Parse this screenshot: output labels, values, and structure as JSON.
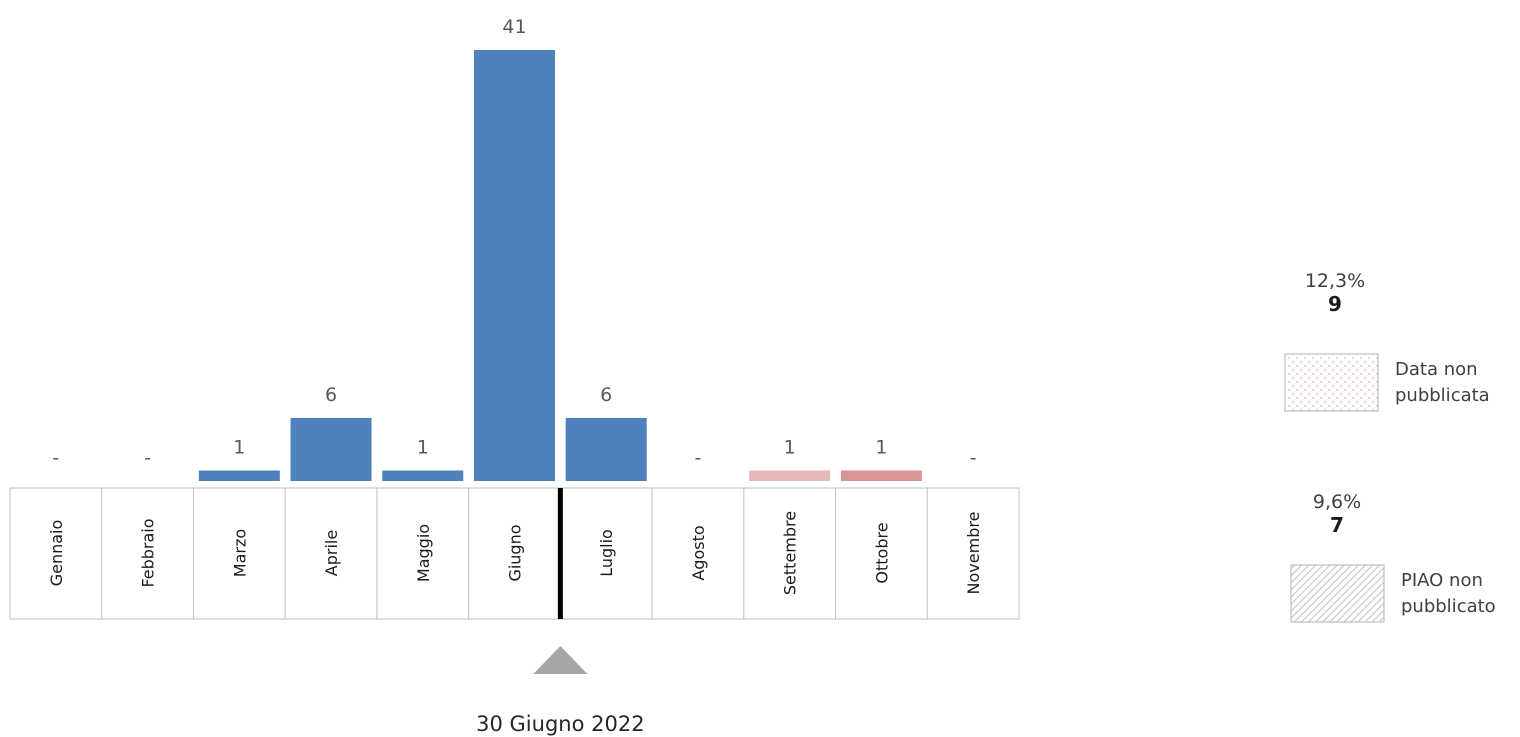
{
  "chart_data": {
    "type": "bar",
    "categories": [
      "Gennaio",
      "Febbraio",
      "Marzo",
      "Aprile",
      "Maggio",
      "Giugno",
      "Luglio",
      "Agosto",
      "Settembre",
      "Ottobre",
      "Novembre"
    ],
    "values": [
      0,
      0,
      1,
      6,
      1,
      41,
      6,
      0,
      1,
      1,
      0
    ],
    "value_labels": [
      "-",
      "-",
      "1",
      "6",
      "1",
      "41",
      "6",
      "-",
      "1",
      "1",
      "-"
    ],
    "bar_colors": [
      "#4f81bd",
      "#4f81bd",
      "#4f81bd",
      "#4f81bd",
      "#4f81bd",
      "#4f81bd",
      "#4f81bd",
      "#4f81bd",
      "#e6b8b7",
      "#d99594",
      "#4f81bd"
    ],
    "ylim": [
      0,
      41
    ],
    "title": "",
    "xlabel": "",
    "ylabel": "",
    "marker": {
      "after_category": "Giugno",
      "label": "30 Giugno 2022"
    }
  },
  "side_stats": [
    {
      "percent": "12,3%",
      "count": "9",
      "legend_label": "Data non pubblicata",
      "legend_label_lines": [
        "Data non",
        "pubblicata"
      ],
      "pattern": "dotted-pink"
    },
    {
      "percent": "9,6%",
      "count": "7",
      "legend_label": "PIAO non pubblicato",
      "legend_label_lines": [
        "PIAO non",
        "pubblicato"
      ],
      "pattern": "hatched-grey"
    }
  ],
  "colors": {
    "bar_default": "#4f81bd",
    "bar_settembre": "#e6b8b7",
    "bar_ottobre": "#d99594",
    "marker_line": "#000000",
    "marker_triangle": "#a6a6a6"
  }
}
